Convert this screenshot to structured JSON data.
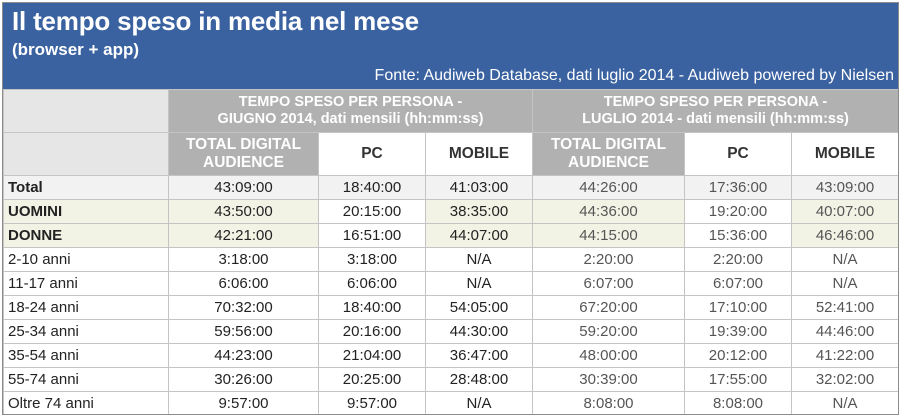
{
  "title": "Il tempo speso in media nel mese",
  "subtitle": "(browser + app)",
  "source": "Fonte: Audiweb Database, dati luglio 2014 - Audiweb powered by Nielsen",
  "chart_data": {
    "type": "table",
    "groups": [
      {
        "label_line1": "TEMPO SPESO PER PERSONA -",
        "label_line2": "GIUGNO 2014, dati mensili (hh:mm:ss)"
      },
      {
        "label_line1": "TEMPO SPESO PER PERSONA -",
        "label_line2": "LUGLIO 2014 - dati mensili (hh:mm:ss)"
      }
    ],
    "columns": [
      "TOTAL DIGITAL AUDIENCE",
      "PC",
      "MOBILE",
      "TOTAL DIGITAL AUDIENCE",
      "PC",
      "MOBILE"
    ],
    "rows": [
      {
        "label": "Total",
        "values": [
          "43:09:00",
          "18:40:00",
          "41:03:00",
          "44:26:00",
          "17:36:00",
          "43:09:00"
        ]
      },
      {
        "label": "UOMINI",
        "values": [
          "43:50:00",
          "20:15:00",
          "38:35:00",
          "44:36:00",
          "19:20:00",
          "40:07:00"
        ]
      },
      {
        "label": "DONNE",
        "values": [
          "42:21:00",
          "16:51:00",
          "44:07:00",
          "44:15:00",
          "15:36:00",
          "46:46:00"
        ]
      },
      {
        "label": "2-10 anni",
        "values": [
          "3:18:00",
          "3:18:00",
          "N/A",
          "2:20:00",
          "2:20:00",
          "N/A"
        ]
      },
      {
        "label": "11-17 anni",
        "values": [
          "6:06:00",
          "6:06:00",
          "N/A",
          "6:07:00",
          "6:07:00",
          "N/A"
        ]
      },
      {
        "label": "18-24 anni",
        "values": [
          "70:32:00",
          "18:40:00",
          "54:05:00",
          "67:20:00",
          "17:10:00",
          "52:41:00"
        ]
      },
      {
        "label": "25-34 anni",
        "values": [
          "59:56:00",
          "20:16:00",
          "44:30:00",
          "59:20:00",
          "19:39:00",
          "44:46:00"
        ]
      },
      {
        "label": "35-54 anni",
        "values": [
          "44:23:00",
          "21:04:00",
          "36:47:00",
          "48:00:00",
          "20:12:00",
          "41:22:00"
        ]
      },
      {
        "label": "55-74 anni",
        "values": [
          "30:26:00",
          "20:25:00",
          "28:48:00",
          "30:39:00",
          "17:55:00",
          "32:02:00"
        ]
      },
      {
        "label": "Oltre 74 anni",
        "values": [
          "9:57:00",
          "9:57:00",
          "N/A",
          "8:08:00",
          "8:08:00",
          "N/A"
        ]
      }
    ]
  }
}
